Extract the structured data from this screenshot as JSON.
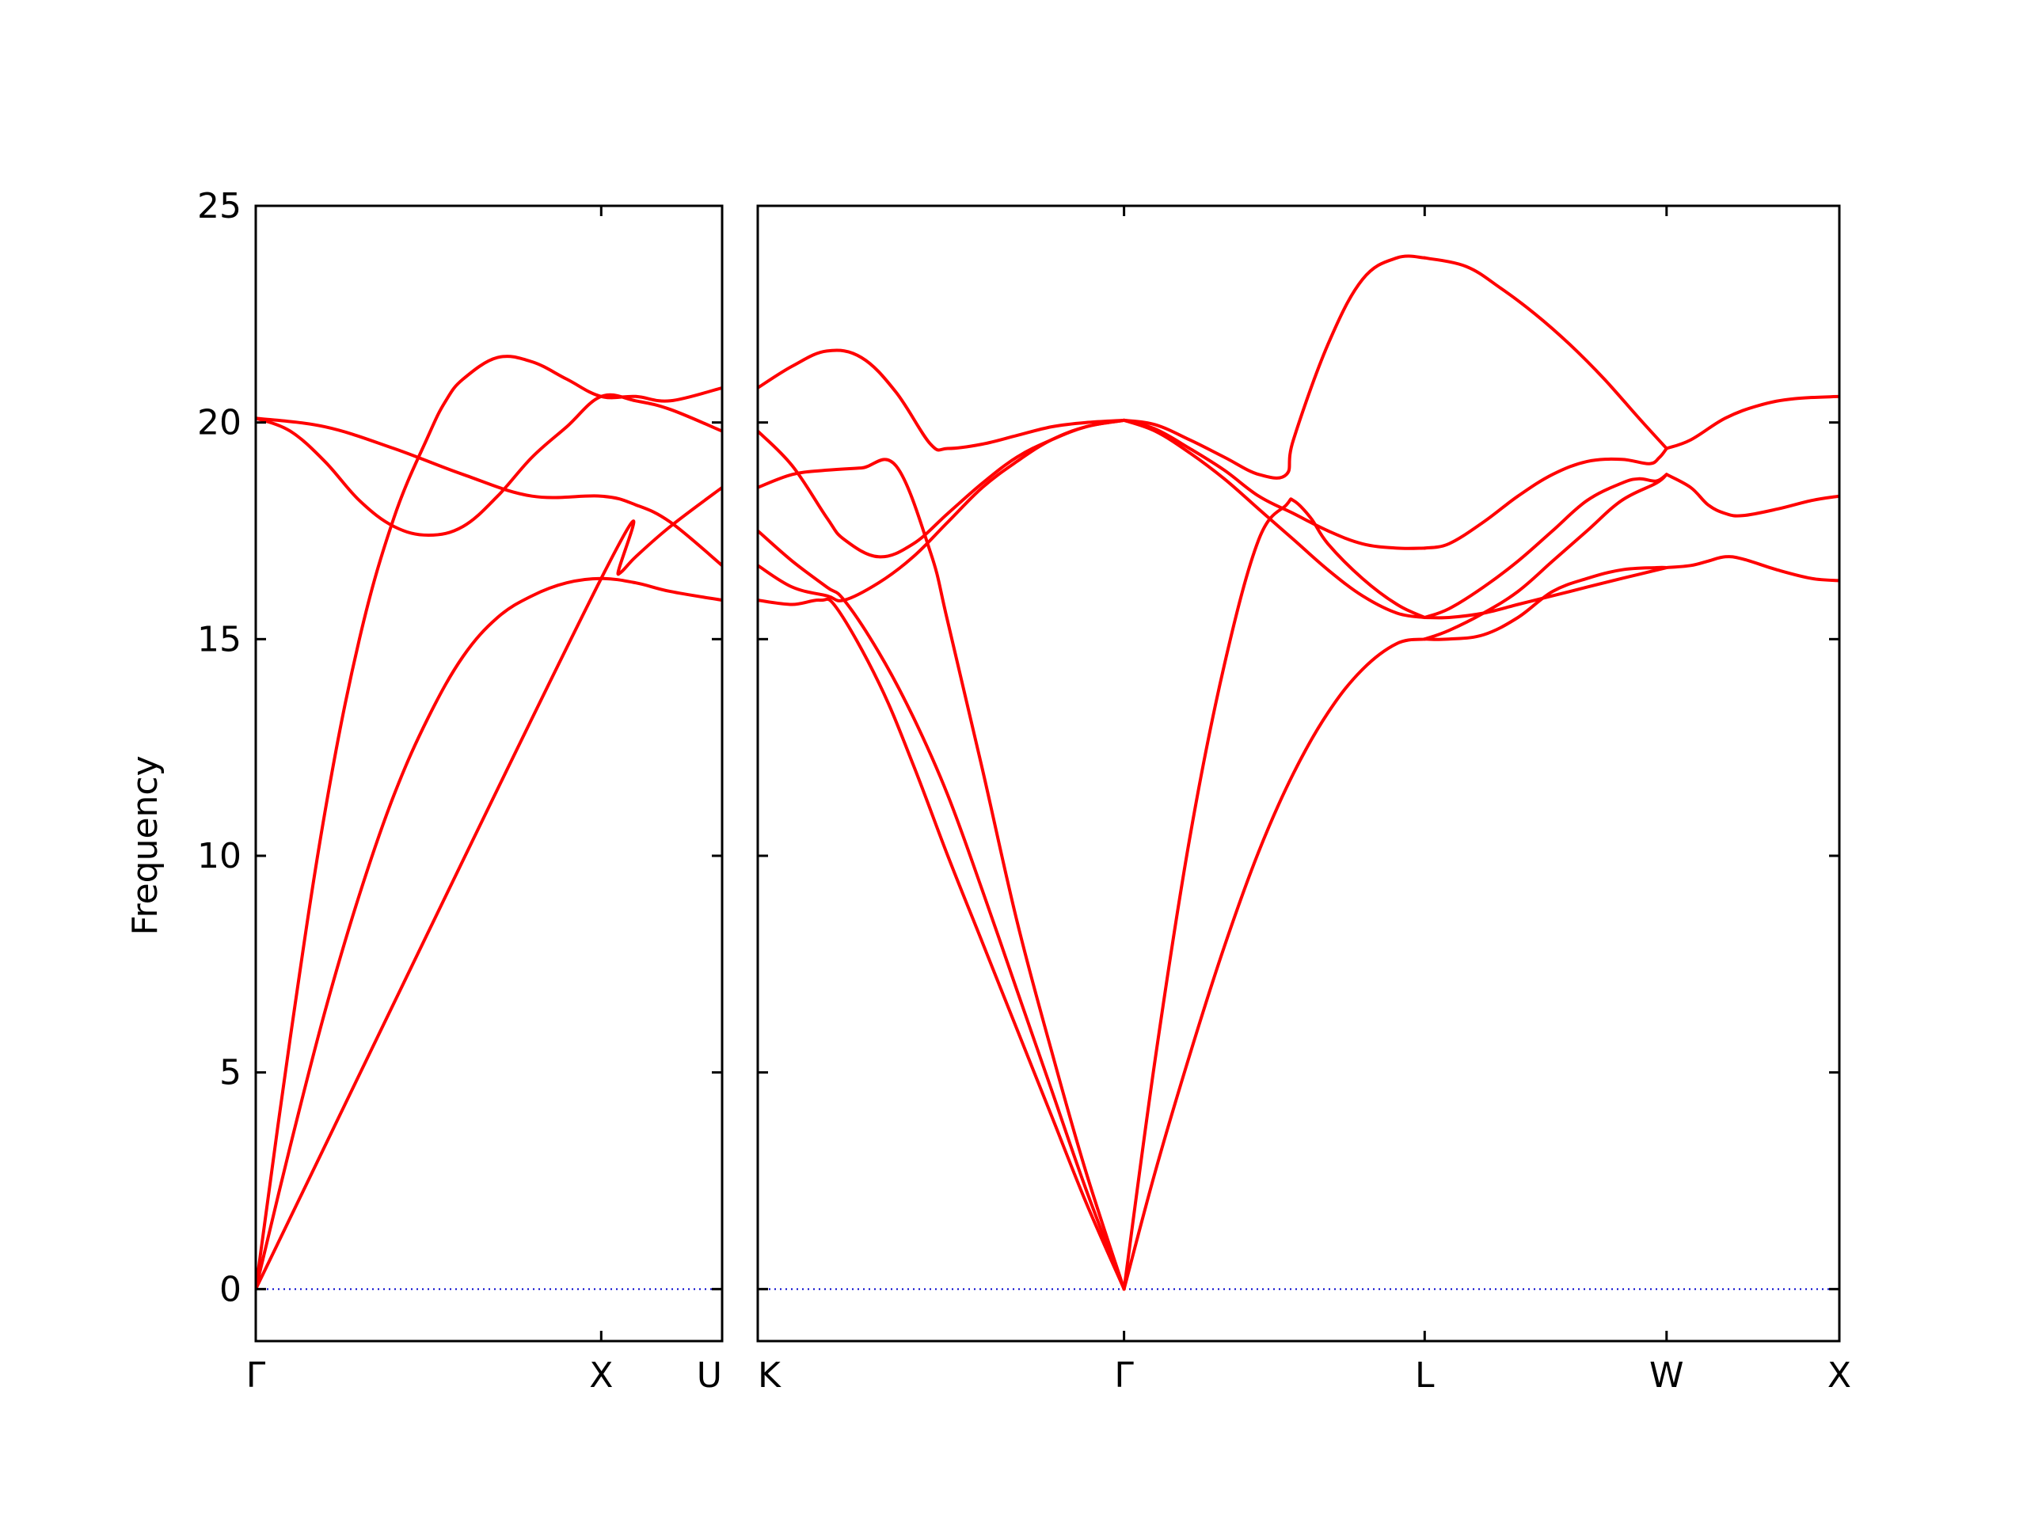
{
  "chart_data": {
    "type": "line",
    "title": "",
    "xlabel": "",
    "ylabel": "Frequency",
    "ylim": [
      -1.2,
      25
    ],
    "yticks": [
      0,
      5,
      10,
      15,
      20,
      25
    ],
    "grid": false,
    "colors": {
      "band": "#ff0000",
      "zero_line": "#0000cc",
      "axes": "#000000"
    },
    "panels": [
      {
        "x_range": [
          0,
          1.35
        ],
        "xticks": [
          {
            "x": 0,
            "label": "Γ"
          },
          {
            "x": 1.0,
            "label": "X"
          },
          {
            "x": 1.35,
            "label": "U"
          }
        ],
        "series": [
          {
            "x": [
              0,
              0.1,
              0.2,
              0.3,
              0.4,
              0.5,
              0.6,
              0.7,
              0.8,
              0.9,
              1.0,
              1.1,
              1.2,
              1.35
            ],
            "y": [
              0,
              3.3,
              6.4,
              9.1,
              11.4,
              13.2,
              14.6,
              15.5,
              16.0,
              16.3,
              16.4,
              16.3,
              16.1,
              15.9
            ]
          },
          {
            "x": [
              0,
              0.1,
              0.2,
              0.3,
              0.4,
              0.5,
              0.55,
              0.6,
              0.7,
              0.8,
              0.9,
              1.0,
              1.1,
              1.2,
              1.35
            ],
            "y": [
              0,
              5.8,
              11.0,
              15.0,
              17.8,
              19.7,
              20.5,
              21.0,
              21.5,
              21.4,
              21.0,
              20.6,
              20.6,
              20.5,
              20.8
            ]
          },
          {
            "x": [
              0,
              0.1,
              0.2,
              0.3,
              0.4,
              0.5,
              0.6,
              0.7,
              0.8,
              0.9,
              1.0,
              1.1,
              1.2,
              1.35
            ],
            "y": [
              20.1,
              19.8,
              19.1,
              18.2,
              17.6,
              17.4,
              17.6,
              18.3,
              19.2,
              19.9,
              20.6,
              20.5,
              20.3,
              19.8
            ]
          },
          {
            "x": [
              0,
              0.2,
              0.4,
              0.6,
              0.8,
              1.0,
              1.1,
              1.2,
              1.35
            ],
            "y": [
              20.1,
              19.9,
              19.4,
              18.8,
              18.3,
              18.3,
              18.1,
              17.7,
              16.7
            ]
          },
          {
            "x": [
              0,
              1.0,
              1.05,
              1.1,
              1.2,
              1.35
            ],
            "y": [
              0,
              16.4,
              16.5,
              16.9,
              17.6,
              18.5
            ]
          }
        ]
      },
      {
        "x_range": [
          1.35,
          4.48
        ],
        "xticks": [
          {
            "x": 1.35,
            "label": "K"
          },
          {
            "x": 2.41,
            "label": "Γ"
          },
          {
            "x": 3.28,
            "label": "L"
          },
          {
            "x": 3.98,
            "label": "W"
          },
          {
            "x": 4.48,
            "label": "X"
          }
        ],
        "series": [
          {
            "x": [
              1.35,
              1.45,
              1.53,
              1.58,
              1.7,
              1.8,
              1.9,
              2.0,
              2.1,
              2.2,
              2.3,
              2.41
            ],
            "y": [
              15.9,
              15.8,
              15.9,
              15.7,
              14.0,
              12.1,
              10.0,
              8.0,
              6.0,
              4.0,
              2.0,
              0
            ]
          },
          {
            "x": [
              1.35,
              1.45,
              1.55,
              1.6,
              1.7,
              1.8,
              1.9,
              2.0,
              2.1,
              2.2,
              2.3,
              2.41
            ],
            "y": [
              17.5,
              16.8,
              16.2,
              15.9,
              14.7,
              13.2,
              11.4,
              9.2,
              6.9,
              4.6,
              2.3,
              0
            ]
          },
          {
            "x": [
              1.35,
              1.45,
              1.55,
              1.65,
              1.75,
              1.85,
              1.9,
              2.0,
              2.1,
              2.2,
              2.3,
              2.41
            ],
            "y": [
              18.5,
              18.8,
              18.9,
              18.95,
              19.0,
              17.0,
              15.4,
              12.0,
              8.5,
              5.5,
              2.7,
              0
            ]
          },
          {
            "x": [
              1.35,
              1.45,
              1.55,
              1.65,
              1.75,
              1.85,
              1.9,
              2.0,
              2.1,
              2.2,
              2.3,
              2.41
            ],
            "y": [
              20.8,
              21.3,
              21.65,
              21.5,
              20.7,
              19.5,
              19.4,
              19.5,
              19.7,
              19.9,
              20.0,
              20.05
            ]
          },
          {
            "x": [
              1.35,
              1.45,
              1.55,
              1.6,
              1.7,
              1.8,
              1.9,
              2.0,
              2.1,
              2.2,
              2.3,
              2.41
            ],
            "y": [
              19.8,
              19.0,
              17.8,
              17.3,
              16.9,
              17.2,
              17.9,
              18.6,
              19.2,
              19.6,
              19.9,
              20.05
            ]
          },
          {
            "x": [
              1.35,
              1.45,
              1.55,
              1.6,
              1.7,
              1.8,
              1.9,
              2.0,
              2.1,
              2.2,
              2.3,
              2.41
            ],
            "y": [
              16.7,
              16.2,
              16.0,
              15.9,
              16.3,
              16.9,
              17.7,
              18.5,
              19.1,
              19.6,
              19.9,
              20.05
            ]
          },
          {
            "x": [
              2.41,
              2.5,
              2.6,
              2.7,
              2.8,
              2.9,
              3.0,
              3.1,
              3.2,
              3.28
            ],
            "y": [
              0,
              2.7,
              5.4,
              7.9,
              10.1,
              11.9,
              13.3,
              14.3,
              14.9,
              15.0
            ]
          },
          {
            "x": [
              2.41,
              2.5,
              2.6,
              2.7,
              2.8,
              2.88,
              2.9,
              2.95,
              3.0,
              3.1,
              3.2,
              3.28
            ],
            "y": [
              0,
              5.3,
              10.4,
              14.4,
              17.3,
              18.1,
              18.2,
              17.8,
              17.2,
              16.4,
              15.8,
              15.5
            ]
          },
          {
            "x": [
              2.41,
              2.5,
              2.6,
              2.7,
              2.8,
              2.88,
              2.9,
              3.0,
              3.1,
              3.2,
              3.28
            ],
            "y": [
              20.05,
              19.95,
              19.6,
              19.2,
              18.8,
              18.8,
              19.6,
              21.8,
              23.3,
              23.8,
              23.8
            ]
          },
          {
            "x": [
              2.41,
              2.5,
              2.6,
              2.7,
              2.8,
              2.9,
              3.0,
              3.1,
              3.2,
              3.28
            ],
            "y": [
              20.05,
              19.85,
              19.4,
              18.9,
              18.3,
              17.9,
              17.5,
              17.2,
              17.1,
              17.1
            ]
          },
          {
            "x": [
              2.41,
              2.5,
              2.6,
              2.7,
              2.8,
              2.9,
              3.0,
              3.1,
              3.2,
              3.28
            ],
            "y": [
              20.05,
              19.8,
              19.3,
              18.7,
              18.0,
              17.3,
              16.6,
              16.0,
              15.6,
              15.5
            ]
          },
          {
            "x": [
              3.28,
              3.35,
              3.45,
              3.55,
              3.65,
              3.75,
              3.85,
              3.95,
              3.98
            ],
            "y": [
              15.0,
              15.0,
              15.1,
              15.5,
              16.1,
              16.4,
              16.6,
              16.65,
              16.65
            ]
          },
          {
            "x": [
              3.28,
              3.35,
              3.45,
              3.55,
              3.65,
              3.75,
              3.85,
              3.95,
              3.98
            ],
            "y": [
              15.0,
              15.2,
              15.6,
              16.1,
              16.8,
              17.5,
              18.2,
              18.6,
              18.8
            ]
          },
          {
            "x": [
              3.28,
              3.35,
              3.45,
              3.55,
              3.65,
              3.75,
              3.85,
              3.98
            ],
            "y": [
              15.5,
              15.5,
              15.6,
              15.8,
              16.0,
              16.2,
              16.4,
              16.65
            ]
          },
          {
            "x": [
              3.28,
              3.35,
              3.45,
              3.55,
              3.65,
              3.75,
              3.85,
              3.9,
              3.95,
              3.98
            ],
            "y": [
              15.5,
              15.7,
              16.2,
              16.8,
              17.5,
              18.2,
              18.6,
              18.7,
              18.65,
              18.8
            ]
          },
          {
            "x": [
              3.28,
              3.35,
              3.45,
              3.55,
              3.65,
              3.75,
              3.85,
              3.93,
              3.96,
              3.98
            ],
            "y": [
              17.1,
              17.2,
              17.7,
              18.3,
              18.8,
              19.1,
              19.15,
              19.05,
              19.2,
              19.4
            ]
          },
          {
            "x": [
              3.28,
              3.4,
              3.5,
              3.6,
              3.7,
              3.8,
              3.9,
              3.98
            ],
            "y": [
              23.8,
              23.6,
              23.1,
              22.5,
              21.8,
              21.0,
              20.1,
              19.4
            ]
          },
          {
            "x": [
              3.98,
              4.05,
              4.15,
              4.25,
              4.35,
              4.48
            ],
            "y": [
              19.4,
              19.6,
              20.1,
              20.4,
              20.55,
              20.6
            ]
          },
          {
            "x": [
              3.98,
              4.05,
              4.1,
              4.15,
              4.2,
              4.3,
              4.4,
              4.48
            ],
            "y": [
              18.8,
              18.5,
              18.1,
              17.9,
              17.85,
              18.0,
              18.2,
              18.3
            ]
          },
          {
            "x": [
              3.98,
              4.05,
              4.1,
              4.15,
              4.2,
              4.3,
              4.4,
              4.48
            ],
            "y": [
              16.65,
              16.7,
              16.8,
              16.9,
              16.85,
              16.6,
              16.4,
              16.35
            ]
          }
        ]
      }
    ]
  }
}
